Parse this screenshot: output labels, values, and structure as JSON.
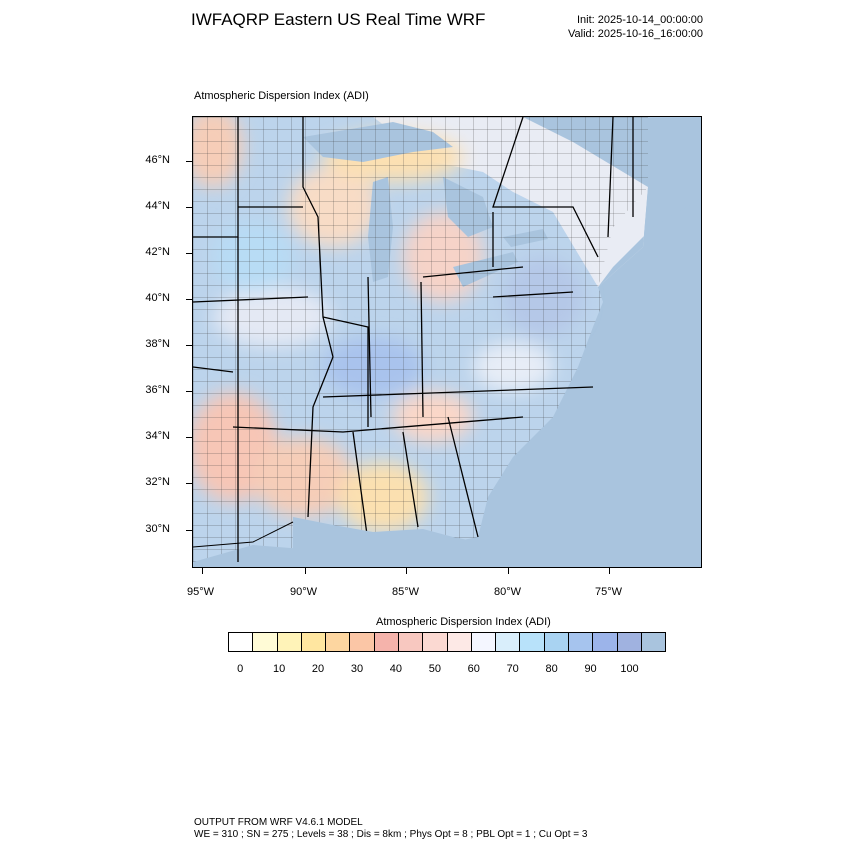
{
  "header": {
    "title": "IWFAQRP Eastern US Real Time WRF",
    "init": "Init: 2025-10-14_00:00:00",
    "valid": "Valid: 2025-10-16_16:00:00"
  },
  "panel": {
    "label": "Atmospheric Dispersion Index   (ADI)"
  },
  "map": {
    "lat_labels": [
      "46°N",
      "44°N",
      "42°N",
      "40°N",
      "38°N",
      "36°N",
      "34°N",
      "32°N",
      "30°N"
    ],
    "lon_labels": [
      "95°W",
      "90°W",
      "85°W",
      "80°W",
      "75°W"
    ],
    "ocean_color": "#a9c4de",
    "land_color_low": "#f6d3c8",
    "land_color_high": "#a9c4de"
  },
  "colorbar": {
    "title": "Atmospheric Dispersion Index  (ADI)",
    "colors": [
      "#ffffff",
      "#fffbd6",
      "#fff3b8",
      "#ffe6a0",
      "#fdd6a0",
      "#fbc6a6",
      "#f5b3ab",
      "#f8c8c0",
      "#fbd9d2",
      "#fde9e6",
      "#f4f6ff",
      "#d9eefb",
      "#b8e2fa",
      "#a9d3f2",
      "#a6c4ee",
      "#9cb4ea",
      "#a0b2e0",
      "#a9c4de"
    ],
    "tick_labels": [
      "0",
      "10",
      "20",
      "30",
      "40",
      "50",
      "60",
      "70",
      "80",
      "90",
      "100"
    ]
  },
  "footer": {
    "line1": "OUTPUT FROM WRF V4.6.1 MODEL",
    "line2": "WE = 310 ; SN = 275 ; Levels = 38 ; Dis = 8km ; Phys Opt = 8 ; PBL Opt = 1 ; Cu Opt = 3"
  }
}
